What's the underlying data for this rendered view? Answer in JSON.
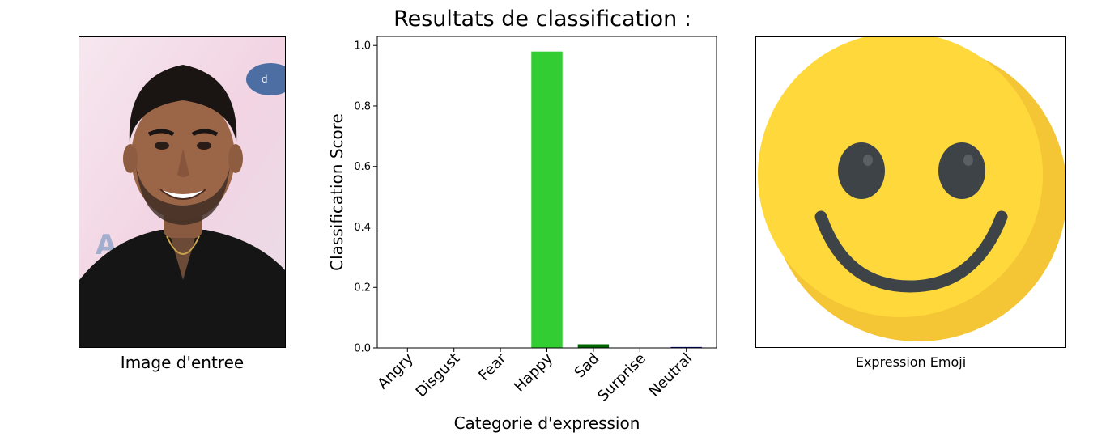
{
  "left_panel": {
    "caption": "Image d'entree"
  },
  "right_panel": {
    "caption": "Expression Emoji",
    "emoji_icon": "smiling-face-icon"
  },
  "chart_data": {
    "type": "bar",
    "title": "Resultats de classification :",
    "xlabel": "Categorie d'expression",
    "ylabel": "Classification Score",
    "categories": [
      "Angry",
      "Disgust",
      "Fear",
      "Happy",
      "Sad",
      "Surprise",
      "Neutral"
    ],
    "values": [
      0.0,
      0.0,
      0.0,
      0.98,
      0.012,
      0.0,
      0.003
    ],
    "colors": [
      "#d62728",
      "#6a3d9a",
      "#ff00ff",
      "#32cd32",
      "#006400",
      "#ffa500",
      "#000080"
    ],
    "yticks": [
      0.0,
      0.2,
      0.4,
      0.6,
      0.8,
      1.0
    ],
    "ylim": [
      0,
      1.03
    ],
    "grid": false,
    "legend": "none"
  }
}
